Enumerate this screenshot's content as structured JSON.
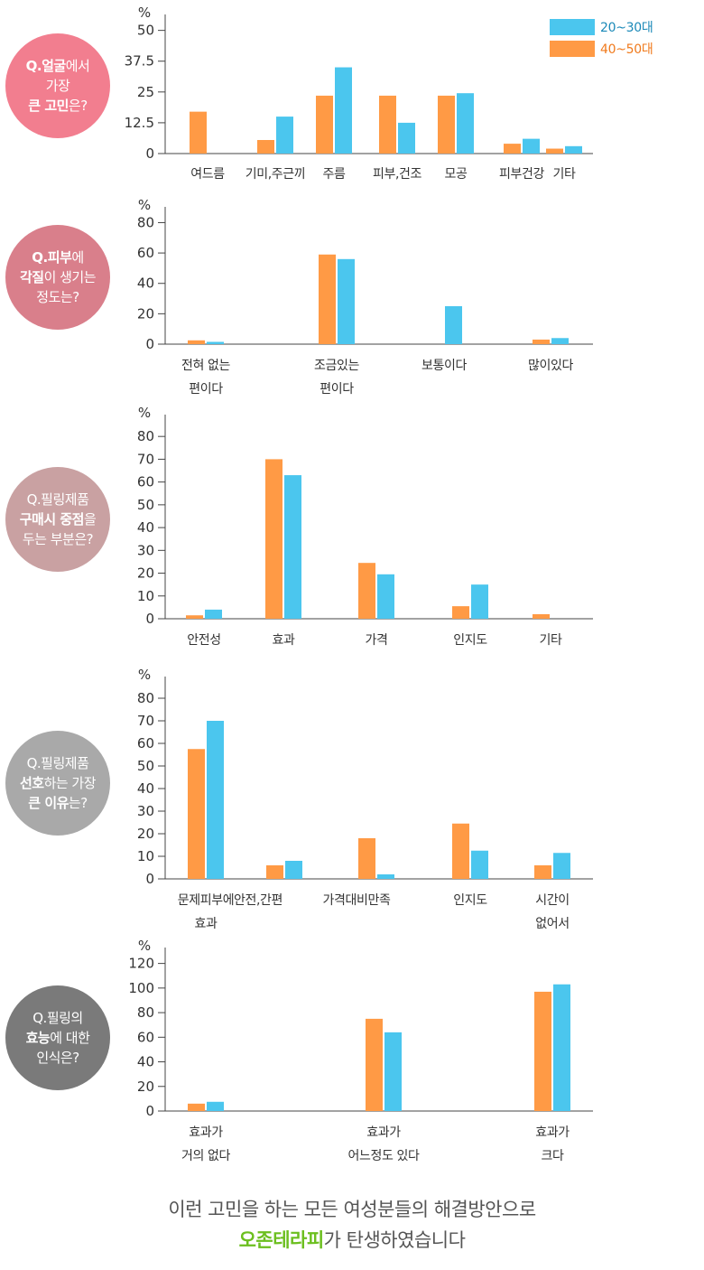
{
  "colors": {
    "young": "#4bc6ee",
    "old": "#ff9a45",
    "axis": "#444444",
    "text": "#333333"
  },
  "legend": {
    "young_label": "20~30대",
    "old_label": "40~50대",
    "young_color": "#1b89b8",
    "old_color": "#f07a1c"
  },
  "questions": [
    {
      "color": "#f27e8f",
      "lines": [
        {
          "b": "Q.얼굴",
          "n": "에서"
        },
        {
          "b": "",
          "n": "가장"
        },
        {
          "b": "큰 고민",
          "n": "은?"
        }
      ]
    },
    {
      "color": "#d97f8b",
      "lines": [
        {
          "b": "Q.피부",
          "n": "에"
        },
        {
          "b": "각질",
          "n": "이 생기는"
        },
        {
          "b": "",
          "n": "정도는?"
        }
      ]
    },
    {
      "color": "#c9a1a2",
      "lines": [
        {
          "b": "",
          "n": "Q.필링제품"
        },
        {
          "b": "구매시 중점",
          "n": "을"
        },
        {
          "b": "",
          "n": "두는 부분은?"
        }
      ]
    },
    {
      "color": "#a9a9a9",
      "lines": [
        {
          "b": "",
          "n": "Q.필링제품"
        },
        {
          "b": "선호",
          "n": "하는 가장"
        },
        {
          "b": "큰 이유",
          "n": "는?"
        }
      ]
    },
    {
      "color": "#7a7a7a",
      "lines": [
        {
          "b": "",
          "n": "Q.필링의"
        },
        {
          "b": "효능",
          "n": "에 대한"
        },
        {
          "b": "",
          "n": "인식은?"
        }
      ]
    }
  ],
  "chart_data": [
    {
      "type": "bar",
      "ylabel": "%",
      "yticks": [
        "0",
        "12.5",
        "25",
        "37.5",
        "50"
      ],
      "ylim": [
        0,
        55
      ],
      "categories": [
        [
          "여드름"
        ],
        [
          "기미,주근끼"
        ],
        [
          "주름"
        ],
        [
          "피부,건조"
        ],
        [
          "모공"
        ],
        [
          "피부건강"
        ],
        [
          "기타"
        ]
      ],
      "series": [
        {
          "name": "40~50대",
          "values": [
            17,
            5.5,
            23.5,
            23.5,
            23.5,
            4,
            2
          ]
        },
        {
          "name": "20~30대",
          "values": [
            0,
            15,
            35,
            12.5,
            24.5,
            6,
            3
          ]
        }
      ],
      "legend": "top-right"
    },
    {
      "type": "bar",
      "ylabel": "%",
      "yticks": [
        "0",
        "20",
        "40",
        "60",
        "80"
      ],
      "ylim": [
        0,
        88
      ],
      "categories": [
        [
          "전혀 없는",
          "편이다"
        ],
        [
          "조금있는",
          "편이다"
        ],
        [
          "보통이다"
        ],
        [
          "많이있다"
        ]
      ],
      "series": [
        {
          "name": "40~50대",
          "values": [
            2.5,
            59,
            0,
            3
          ]
        },
        {
          "name": "20~30대",
          "values": [
            1.5,
            56,
            25,
            4
          ]
        }
      ]
    },
    {
      "type": "bar",
      "ylabel": "%",
      "yticks": [
        "0",
        "10",
        "20",
        "30",
        "40",
        "50",
        "60",
        "70",
        "80"
      ],
      "ylim": [
        0,
        88
      ],
      "categories": [
        [
          "안전성"
        ],
        [
          "효과"
        ],
        [
          "가격"
        ],
        [
          "인지도"
        ],
        [
          "기타"
        ]
      ],
      "series": [
        {
          "name": "40~50대",
          "values": [
            1.5,
            70,
            24.5,
            5.5,
            2
          ]
        },
        {
          "name": "20~30대",
          "values": [
            4,
            63,
            19.5,
            15,
            0
          ]
        }
      ]
    },
    {
      "type": "bar",
      "ylabel": "%",
      "yticks": [
        "0",
        "10",
        "20",
        "30",
        "40",
        "50",
        "60",
        "70",
        "80"
      ],
      "ylim": [
        0,
        88
      ],
      "categories": [
        [
          "문제피부에",
          "효과"
        ],
        [
          "안전,간편"
        ],
        [
          "가격대비만족"
        ],
        [
          "인지도"
        ],
        [
          "시간이",
          "없어서"
        ]
      ],
      "series": [
        {
          "name": "40~50대",
          "values": [
            57.5,
            6,
            18,
            24.5,
            6
          ]
        },
        {
          "name": "20~30대",
          "values": [
            70,
            8,
            2,
            12.5,
            11.5
          ]
        }
      ]
    },
    {
      "type": "bar",
      "ylabel": "%",
      "yticks": [
        "0",
        "20",
        "40",
        "60",
        "80",
        "100",
        "120"
      ],
      "ylim": [
        0,
        130
      ],
      "categories": [
        [
          "효과가",
          "거의 없다"
        ],
        [
          "효과가",
          "어느정도 있다"
        ],
        [
          "효과가",
          "크다"
        ]
      ],
      "series": [
        {
          "name": "40~50대",
          "values": [
            6,
            75,
            97
          ]
        },
        {
          "name": "20~30대",
          "values": [
            7.5,
            64,
            103
          ]
        }
      ]
    }
  ],
  "footer": {
    "line1": "이런 고민을 하는 모든 여성분들의 해결방안으로",
    "brand": "오존테라피",
    "line2_rest": "가 탄생하였습니다"
  }
}
